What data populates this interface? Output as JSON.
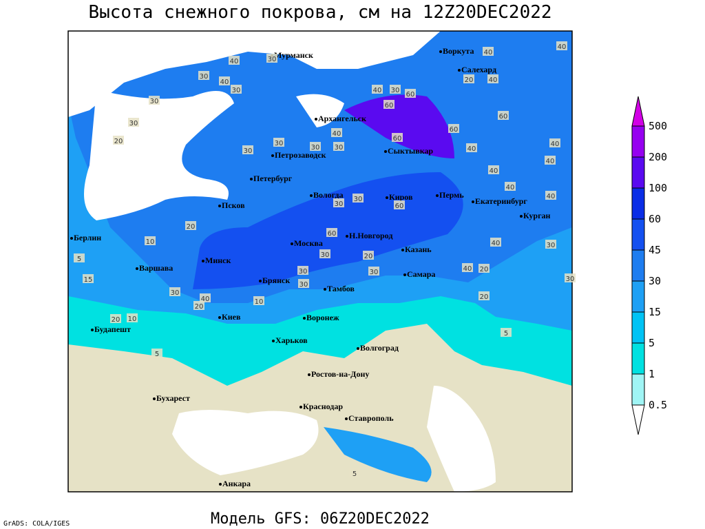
{
  "header": {
    "title": "Высота снежного покрова, см на 12Z20DEC2022"
  },
  "map": {
    "cities": [
      "Мурманск",
      "Воркута",
      "Салехард",
      "Архангельск",
      "Сыктывкар",
      "Петрозаводск",
      "Петербург",
      "Вологда",
      "Киров",
      "Пермь",
      "Екатеринбург",
      "Псков",
      "Курган",
      "Берлин",
      "Москва",
      "Н.Новгород",
      "Казань",
      "Минск",
      "Варшава",
      "Самара",
      "Брянск",
      "Тамбов",
      "Киев",
      "Воронеж",
      "Будапешт",
      "Харьков",
      "Волгоград",
      "Ростов-на-Дону",
      "Бухарест",
      "Краснодар",
      "Ставрополь",
      "Анкара"
    ],
    "contour_labels": [
      30,
      40,
      30,
      40,
      30,
      30,
      30,
      20,
      40,
      30,
      60,
      60,
      40,
      40,
      20,
      40,
      60,
      60,
      40,
      60,
      30,
      30,
      30,
      40,
      40,
      40,
      30,
      40,
      40,
      40,
      60,
      30,
      30,
      20,
      60,
      40,
      30,
      10,
      5,
      15,
      5,
      20,
      10,
      30,
      20,
      10,
      40,
      30,
      30,
      30,
      30,
      20,
      20,
      40,
      20,
      5,
      30,
      5
    ]
  },
  "legend": {
    "levels": [
      0.5,
      1,
      5,
      15,
      30,
      45,
      60,
      100,
      200,
      500
    ],
    "colors": [
      "#ffffff",
      "#a0f5f5",
      "#00e1e1",
      "#00c3f5",
      "#1ea0f5",
      "#1e7df0",
      "#1450f0",
      "#0a2de6",
      "#5a0af0",
      "#9600f0",
      "#d200e6"
    ]
  },
  "footer": {
    "model": "Модель GFS: 06Z20DEC2022",
    "credit": "GrADS: COLA/IGES"
  }
}
